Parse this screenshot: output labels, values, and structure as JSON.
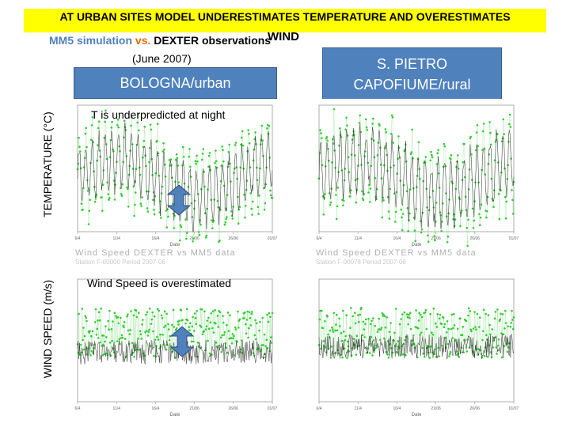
{
  "header": {
    "title": "AT URBAN SITES MODEL UNDERESTIMATES TEMPERATURE AND OVERESTIMATES",
    "title_cont": "WIND",
    "sub_mm5": "MM5 simulation",
    "sub_vs": "vs.",
    "sub_dexter": "DEXTER observations",
    "period": "(June 2007)"
  },
  "sites": {
    "urban": "BOLOGNA/urban",
    "rural": "S. PIETRO CAPOFIUME/rural"
  },
  "axis_labels": {
    "temperature": "TEMPERATURE (°C)",
    "wind": "WIND SPEED (m/s)"
  },
  "annotations": {
    "temperature": "T is underpredicted at night",
    "wind": "Wind Speed is overestimated"
  },
  "panel_captions": {
    "urban_wind_title": "Wind Speed DEXTER vs MM5 data",
    "urban_wind_sub": "Station F-00000 Period 2007-06",
    "rural_wind_title": "Wind Speed DEXTER vs MM5 data",
    "rural_wind_sub": "Station F-00078 Period 2007-06"
  },
  "colors": {
    "banner": "#ffff00",
    "site_box": "#4f81bd",
    "obs_markers": "#33cc33",
    "model_line": "#333333",
    "arrow": "#4f81bd"
  },
  "chart_data": [
    {
      "type": "line",
      "panel": "BOLOGNA/urban temperature",
      "xlabel": "Date",
      "x_ticks": [
        "6/4",
        "11/4",
        "16/4",
        "21/06",
        "26/06",
        "01/07"
      ],
      "series": [
        {
          "marker": "green-dots",
          "amplitude": 9,
          "mean": 24,
          "trend": 4
        },
        {
          "marker": "line",
          "amplitude": 6,
          "mean": 24,
          "trend": 4
        }
      ]
    },
    {
      "type": "line",
      "panel": "S. PIETRO CAPOFIUME/rural temperature",
      "xlabel": "Date",
      "x_ticks": [
        "6/4",
        "11/4",
        "16/4",
        "21/06",
        "26/06",
        "01/07"
      ],
      "series": [
        {
          "marker": "green-dots",
          "amplitude": 10,
          "mean": 23,
          "trend": 4
        },
        {
          "marker": "line",
          "amplitude": 7,
          "mean": 23,
          "trend": 4
        }
      ]
    },
    {
      "type": "line",
      "panel": "BOLOGNA/urban wind speed",
      "xlabel": "Date",
      "x_ticks": [
        "6/4",
        "11/4",
        "16/4",
        "21/06",
        "26/06",
        "01/07"
      ],
      "series": [
        {
          "marker": "green-dots",
          "amplitude": 3,
          "mean": 3.5,
          "trend": 0
        },
        {
          "marker": "line",
          "amplitude": 1.5,
          "mean": 2,
          "trend": 0
        }
      ]
    },
    {
      "type": "line",
      "panel": "S. PIETRO CAPOFIUME/rural wind speed",
      "xlabel": "Date",
      "x_ticks": [
        "6/4",
        "11/4",
        "16/4",
        "21/06",
        "26/06",
        "01/07"
      ],
      "series": [
        {
          "marker": "green-dots",
          "amplitude": 3.2,
          "mean": 3.2,
          "trend": 0
        },
        {
          "marker": "line",
          "amplitude": 1.6,
          "mean": 2.2,
          "trend": 0
        }
      ]
    }
  ]
}
